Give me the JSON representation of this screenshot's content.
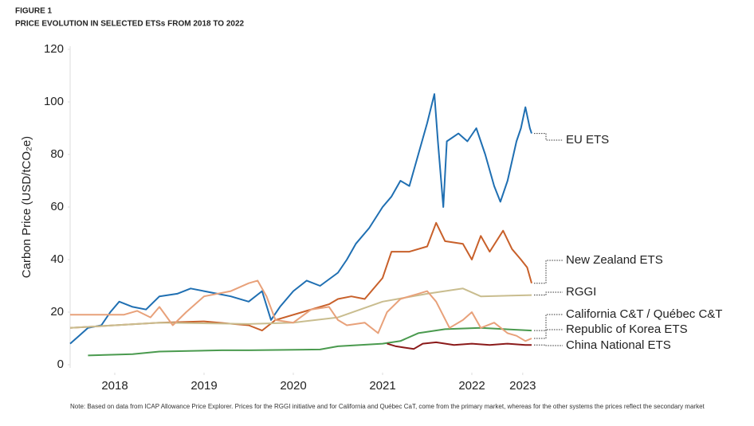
{
  "chart_data": {
    "type": "line",
    "figure_label": "FIGURE 1",
    "title": "PRICE EVOLUTION IN SELECTED ETSs FROM 2018 TO 2022",
    "y_label": "Carbon Price (USD/tCO₂e)",
    "note": "Note: Based on data from ICAP Allowance Price Explorer. Prices for the RGGI initiative and for California and Québec CaT, come from the primary market, whereas for the other systems the prices reflect the secondary market",
    "xlim": [
      2018,
      2023.25
    ],
    "xticks": [
      {
        "value": 2018.5,
        "label": "2018"
      },
      {
        "value": 2019.5,
        "label": "2019"
      },
      {
        "value": 2020.5,
        "label": "2020"
      },
      {
        "value": 2021.5,
        "label": "2021"
      },
      {
        "value": 2022.5,
        "label": "2022"
      },
      {
        "value": 2023.07,
        "label": "2023"
      }
    ],
    "ylim": [
      0,
      120
    ],
    "yticks": [
      0,
      20,
      40,
      60,
      80,
      100,
      120
    ],
    "grid": false,
    "series": [
      {
        "name": "EU ETS",
        "color": "#1f6fb2",
        "x": [
          2018.0,
          2018.1,
          2018.2,
          2018.35,
          2018.45,
          2018.55,
          2018.7,
          2018.85,
          2019.0,
          2019.2,
          2019.35,
          2019.5,
          2019.65,
          2019.8,
          2020.0,
          2020.15,
          2020.25,
          2020.35,
          2020.5,
          2020.65,
          2020.8,
          2021.0,
          2021.1,
          2021.2,
          2021.35,
          2021.5,
          2021.6,
          2021.7,
          2021.8,
          2021.9,
          2022.0,
          2022.08,
          2022.12,
          2022.18,
          2022.22,
          2022.35,
          2022.45,
          2022.55,
          2022.65,
          2022.75,
          2022.82,
          2022.9,
          2023.0,
          2023.05,
          2023.1,
          2023.15,
          2023.17
        ],
        "values": [
          8,
          11,
          14,
          15,
          20,
          24,
          22,
          21,
          26,
          27,
          29,
          28,
          27,
          26,
          24,
          28,
          17,
          22,
          28,
          32,
          30,
          35,
          40,
          46,
          52,
          60,
          64,
          70,
          68,
          80,
          92,
          103,
          85,
          60,
          85,
          88,
          85,
          90,
          80,
          68,
          62,
          70,
          85,
          90,
          98,
          90,
          88
        ]
      },
      {
        "name": "New Zealand ETS",
        "color": "#c8602a",
        "x": [
          2018.0,
          2018.5,
          2019.0,
          2019.5,
          2020.0,
          2020.15,
          2020.3,
          2020.6,
          2020.9,
          2021.0,
          2021.15,
          2021.3,
          2021.5,
          2021.6,
          2021.8,
          2022.0,
          2022.1,
          2022.2,
          2022.4,
          2022.5,
          2022.6,
          2022.7,
          2022.85,
          2022.95,
          2023.05,
          2023.12,
          2023.17
        ],
        "values": [
          14,
          15,
          16,
          16.5,
          15,
          13,
          17,
          20,
          23,
          25,
          26,
          25,
          33,
          43,
          43,
          45,
          54,
          47,
          46,
          40,
          49,
          43,
          51,
          44,
          40,
          37,
          31
        ]
      },
      {
        "name": "RGGI",
        "color": "#c9bd8f",
        "x": [
          2018.0,
          2019.0,
          2020.0,
          2020.5,
          2021.0,
          2021.5,
          2022.0,
          2022.4,
          2022.6,
          2023.17
        ],
        "values": [
          14,
          16,
          15.5,
          16,
          18,
          24,
          27,
          29,
          26,
          26.5
        ]
      },
      {
        "name": "California C&T / Québec C&T",
        "color": "#4a9a4e",
        "x": [
          2018.2,
          2018.7,
          2019.0,
          2019.7,
          2020.0,
          2020.8,
          2021.0,
          2021.5,
          2021.7,
          2021.9,
          2022.2,
          2022.6,
          2023.17
        ],
        "values": [
          3.5,
          4,
          5,
          5.5,
          5.5,
          5.8,
          7,
          8,
          9,
          12,
          13.5,
          14,
          13
        ]
      },
      {
        "name": "Republic of Korea ETS",
        "color": "#e8a17a",
        "x": [
          2018.0,
          2018.6,
          2018.75,
          2018.9,
          2019.0,
          2019.15,
          2019.3,
          2019.5,
          2019.8,
          2020.0,
          2020.1,
          2020.2,
          2020.3,
          2020.5,
          2020.7,
          2020.9,
          2021.0,
          2021.1,
          2021.3,
          2021.45,
          2021.55,
          2021.7,
          2021.9,
          2022.0,
          2022.1,
          2022.25,
          2022.4,
          2022.5,
          2022.6,
          2022.75,
          2022.9,
          2023.0,
          2023.1,
          2023.17
        ],
        "values": [
          19,
          19,
          20.5,
          18,
          22,
          15,
          20,
          26,
          28,
          31,
          32,
          26,
          17,
          16,
          21,
          22,
          17,
          15,
          16,
          12,
          20,
          25,
          27,
          28,
          24,
          14,
          17,
          20,
          14,
          16,
          12,
          11,
          9,
          10
        ]
      },
      {
        "name": "China National ETS",
        "color": "#8b1a1a",
        "x": [
          2021.55,
          2021.65,
          2021.75,
          2021.85,
          2021.95,
          2022.1,
          2022.3,
          2022.5,
          2022.7,
          2022.9,
          2023.1,
          2023.17
        ],
        "values": [
          8,
          7,
          6.5,
          6,
          8,
          8.5,
          7.5,
          8,
          7.5,
          8,
          7.5,
          7.5
        ]
      }
    ]
  }
}
